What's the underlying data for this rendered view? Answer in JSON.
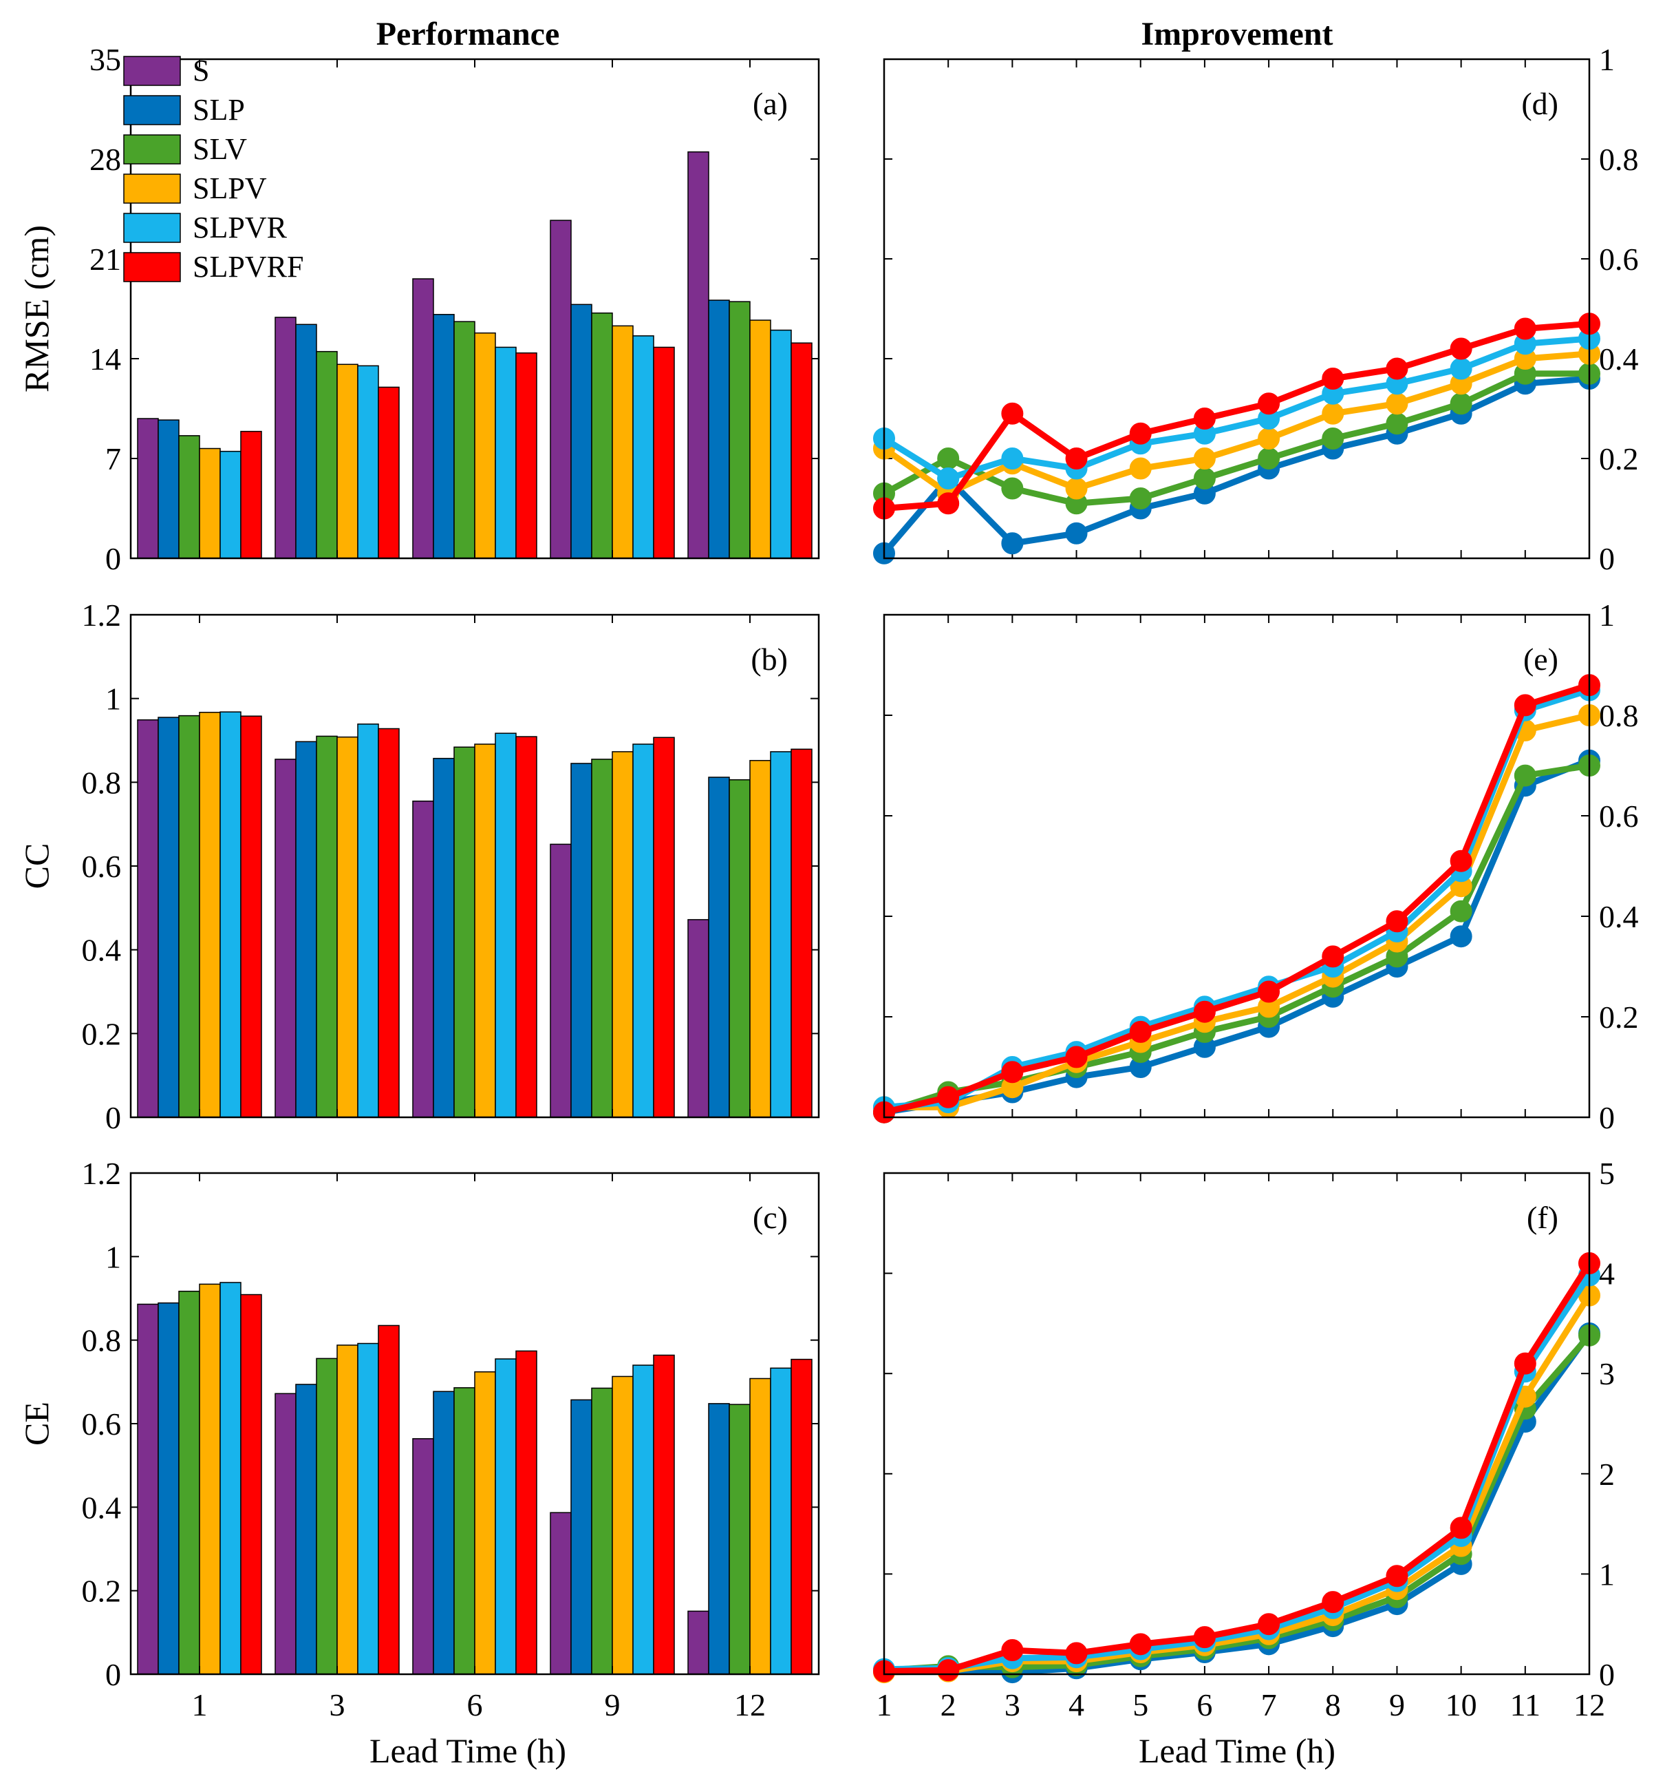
{
  "figure": {
    "left_title": "Performance",
    "right_title": "Improvement",
    "x_label": "Lead Time (h)"
  },
  "colors": {
    "S": "#7e2f8e",
    "SLP": "#0072bd",
    "SLV": "#4aa32a",
    "SLPV": "#ffb000",
    "SLPVR": "#18b4ec",
    "SLPVRF": "#ff0000"
  },
  "legend": [
    "S",
    "SLP",
    "SLV",
    "SLPV",
    "SLPVR",
    "SLPVRF"
  ],
  "chart_data": [
    {
      "id": "a",
      "panel_label": "(a)",
      "type": "bar",
      "ylabel": "RMSE (cm)",
      "ylim": [
        0,
        35
      ],
      "yticks": [
        "0",
        "7",
        "14",
        "21",
        "28",
        "35"
      ],
      "categories": [
        "1",
        "3",
        "6",
        "9",
        "12"
      ],
      "series": [
        {
          "name": "S",
          "values": [
            9.8,
            16.9,
            19.6,
            23.7,
            28.5
          ]
        },
        {
          "name": "SLP",
          "values": [
            9.7,
            16.4,
            17.1,
            17.8,
            18.1
          ]
        },
        {
          "name": "SLV",
          "values": [
            8.6,
            14.5,
            16.6,
            17.2,
            18.0
          ]
        },
        {
          "name": "SLPV",
          "values": [
            7.7,
            13.6,
            15.8,
            16.3,
            16.7
          ]
        },
        {
          "name": "SLPVR",
          "values": [
            7.5,
            13.5,
            14.8,
            15.6,
            16.0
          ]
        },
        {
          "name": "SLPVRF",
          "values": [
            8.9,
            12.0,
            14.4,
            14.8,
            15.1
          ]
        }
      ]
    },
    {
      "id": "b",
      "panel_label": "(b)",
      "type": "bar",
      "ylabel": "CC",
      "ylim": [
        0,
        1.2
      ],
      "yticks": [
        "0",
        "0.2",
        "0.4",
        "0.6",
        "0.8",
        "1",
        "1.2"
      ],
      "categories": [
        "1",
        "3",
        "6",
        "9",
        "12"
      ],
      "series": [
        {
          "name": "S",
          "values": [
            0.949,
            0.855,
            0.755,
            0.652,
            0.472
          ]
        },
        {
          "name": "SLP",
          "values": [
            0.955,
            0.897,
            0.857,
            0.845,
            0.812
          ]
        },
        {
          "name": "SLV",
          "values": [
            0.959,
            0.91,
            0.884,
            0.855,
            0.806
          ]
        },
        {
          "name": "SLPV",
          "values": [
            0.967,
            0.908,
            0.891,
            0.873,
            0.852
          ]
        },
        {
          "name": "SLPVR",
          "values": [
            0.968,
            0.939,
            0.917,
            0.891,
            0.873
          ]
        },
        {
          "name": "SLPVRF",
          "values": [
            0.958,
            0.928,
            0.909,
            0.907,
            0.879
          ]
        }
      ]
    },
    {
      "id": "c",
      "panel_label": "(c)",
      "type": "bar",
      "ylabel": "CE",
      "ylim": [
        0,
        1.2
      ],
      "yticks": [
        "0",
        "0.2",
        "0.4",
        "0.6",
        "0.8",
        "1",
        "1.2"
      ],
      "categories": [
        "1",
        "3",
        "6",
        "9",
        "12"
      ],
      "series": [
        {
          "name": "S",
          "values": [
            0.886,
            0.672,
            0.564,
            0.387,
            0.151
          ]
        },
        {
          "name": "SLP",
          "values": [
            0.889,
            0.694,
            0.677,
            0.657,
            0.648
          ]
        },
        {
          "name": "SLV",
          "values": [
            0.917,
            0.756,
            0.686,
            0.685,
            0.646
          ]
        },
        {
          "name": "SLPV",
          "values": [
            0.934,
            0.788,
            0.724,
            0.713,
            0.708
          ]
        },
        {
          "name": "SLPVR",
          "values": [
            0.938,
            0.792,
            0.755,
            0.74,
            0.733
          ]
        },
        {
          "name": "SLPVRF",
          "values": [
            0.909,
            0.835,
            0.774,
            0.764,
            0.754
          ]
        }
      ]
    },
    {
      "id": "d",
      "panel_label": "(d)",
      "type": "line",
      "ylim": [
        0,
        1
      ],
      "yticks": [
        "0",
        "0.2",
        "0.4",
        "0.6",
        "0.8",
        "1"
      ],
      "x": [
        1,
        2,
        3,
        4,
        5,
        6,
        7,
        8,
        9,
        10,
        11,
        12
      ],
      "series": [
        {
          "name": "SLP",
          "values": [
            0.01,
            0.16,
            0.03,
            0.05,
            0.1,
            0.13,
            0.18,
            0.22,
            0.25,
            0.29,
            0.35,
            0.36
          ]
        },
        {
          "name": "SLV",
          "values": [
            0.13,
            0.2,
            0.14,
            0.11,
            0.12,
            0.16,
            0.2,
            0.24,
            0.27,
            0.31,
            0.37,
            0.37
          ]
        },
        {
          "name": "SLPV",
          "values": [
            0.22,
            0.13,
            0.19,
            0.14,
            0.18,
            0.2,
            0.24,
            0.29,
            0.31,
            0.35,
            0.4,
            0.41
          ]
        },
        {
          "name": "SLPVR",
          "values": [
            0.24,
            0.16,
            0.2,
            0.18,
            0.23,
            0.25,
            0.28,
            0.33,
            0.35,
            0.38,
            0.43,
            0.44
          ]
        },
        {
          "name": "SLPVRF",
          "values": [
            0.1,
            0.11,
            0.29,
            0.2,
            0.25,
            0.28,
            0.31,
            0.36,
            0.38,
            0.42,
            0.46,
            0.47
          ]
        }
      ]
    },
    {
      "id": "e",
      "panel_label": "(e)",
      "type": "line",
      "ylim": [
        0,
        1
      ],
      "yticks": [
        "0",
        "0.2",
        "0.4",
        "0.6",
        "0.8",
        "1"
      ],
      "x": [
        1,
        2,
        3,
        4,
        5,
        6,
        7,
        8,
        9,
        10,
        11,
        12
      ],
      "series": [
        {
          "name": "SLP",
          "values": [
            0.01,
            0.03,
            0.05,
            0.08,
            0.1,
            0.14,
            0.18,
            0.24,
            0.3,
            0.36,
            0.66,
            0.71
          ]
        },
        {
          "name": "SLV",
          "values": [
            0.01,
            0.05,
            0.07,
            0.1,
            0.13,
            0.17,
            0.2,
            0.26,
            0.32,
            0.41,
            0.68,
            0.7
          ]
        },
        {
          "name": "SLPV",
          "values": [
            0.02,
            0.02,
            0.06,
            0.11,
            0.15,
            0.19,
            0.22,
            0.28,
            0.35,
            0.46,
            0.77,
            0.8
          ]
        },
        {
          "name": "SLPVR",
          "values": [
            0.02,
            0.03,
            0.1,
            0.13,
            0.18,
            0.22,
            0.26,
            0.3,
            0.37,
            0.49,
            0.81,
            0.85
          ]
        },
        {
          "name": "SLPVRF",
          "values": [
            0.01,
            0.04,
            0.09,
            0.12,
            0.17,
            0.21,
            0.25,
            0.32,
            0.39,
            0.51,
            0.82,
            0.86
          ]
        }
      ]
    },
    {
      "id": "f",
      "panel_label": "(f)",
      "type": "line",
      "ylim": [
        0,
        5
      ],
      "yticks": [
        "0",
        "1",
        "2",
        "3",
        "4",
        "5"
      ],
      "x": [
        1,
        2,
        3,
        4,
        5,
        6,
        7,
        8,
        9,
        10,
        11,
        12
      ],
      "series": [
        {
          "name": "SLP",
          "values": [
            0.03,
            0.04,
            0.02,
            0.06,
            0.15,
            0.22,
            0.3,
            0.48,
            0.7,
            1.1,
            2.52,
            3.4
          ]
        },
        {
          "name": "SLV",
          "values": [
            0.04,
            0.08,
            0.07,
            0.09,
            0.18,
            0.25,
            0.36,
            0.54,
            0.77,
            1.2,
            2.65,
            3.38
          ]
        },
        {
          "name": "SLPV",
          "values": [
            0.02,
            0.03,
            0.13,
            0.13,
            0.22,
            0.29,
            0.4,
            0.59,
            0.85,
            1.28,
            2.77,
            3.78
          ]
        },
        {
          "name": "SLPVR",
          "values": [
            0.05,
            0.06,
            0.16,
            0.17,
            0.25,
            0.33,
            0.45,
            0.66,
            0.93,
            1.38,
            3.02,
            3.98
          ]
        },
        {
          "name": "SLPVRF",
          "values": [
            0.03,
            0.04,
            0.24,
            0.21,
            0.3,
            0.37,
            0.5,
            0.72,
            0.98,
            1.46,
            3.1,
            4.1
          ]
        }
      ]
    }
  ]
}
